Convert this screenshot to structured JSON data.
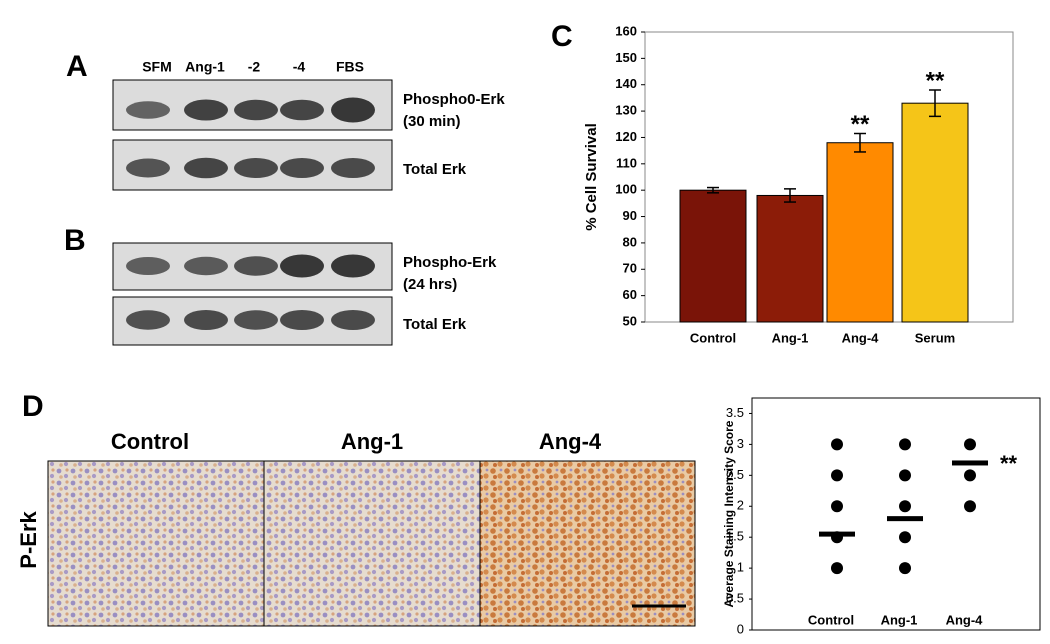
{
  "panels": {
    "a": "A",
    "b": "B",
    "c": "C",
    "d": "D"
  },
  "blots": {
    "lanes": [
      "SFM",
      "Ang-1",
      "-2",
      "-4",
      "FBS"
    ],
    "a_phospho": [
      "Phospho0-Erk",
      "(30 min)"
    ],
    "a_total": "Total Erk",
    "b_phospho": [
      "Phospho-Erk",
      "(24 hrs)"
    ],
    "b_total": "Total Erk"
  },
  "histology": {
    "columns": [
      "Control",
      "Ang-1",
      "Ang-4"
    ],
    "row": "P-Erk"
  },
  "chart_data": [
    {
      "type": "bar",
      "ylabel": "% Cell Survival",
      "categories": [
        "Control",
        "Ang-1",
        "Ang-4",
        "Serum"
      ],
      "values": [
        100,
        98,
        118,
        133
      ],
      "errors": [
        1,
        2.5,
        3.5,
        5
      ],
      "colors": [
        "#7a1408",
        "#8c1c08",
        "#ff8a00",
        "#f5c518"
      ],
      "annotations": [
        null,
        null,
        "**",
        "**"
      ],
      "ylim": [
        50,
        160
      ],
      "yticks": [
        50,
        60,
        70,
        80,
        90,
        100,
        110,
        120,
        130,
        140,
        150,
        160
      ]
    },
    {
      "type": "dot",
      "ylabel": "Average Staining Intensity Score",
      "categories": [
        "Control",
        "Ang-1",
        "Ang-4"
      ],
      "points": [
        [
          3,
          2.5,
          2,
          1.5,
          1
        ],
        [
          3,
          2.5,
          2,
          1.5,
          1
        ],
        [
          3,
          2.5,
          2
        ]
      ],
      "means": [
        1.55,
        1.8,
        2.7
      ],
      "annotations": [
        null,
        null,
        "**"
      ],
      "color": "#000000",
      "ylim": [
        0,
        3.75
      ],
      "yticks": [
        0,
        0.5,
        1,
        1.5,
        2,
        2.5,
        3,
        3.5
      ]
    }
  ]
}
